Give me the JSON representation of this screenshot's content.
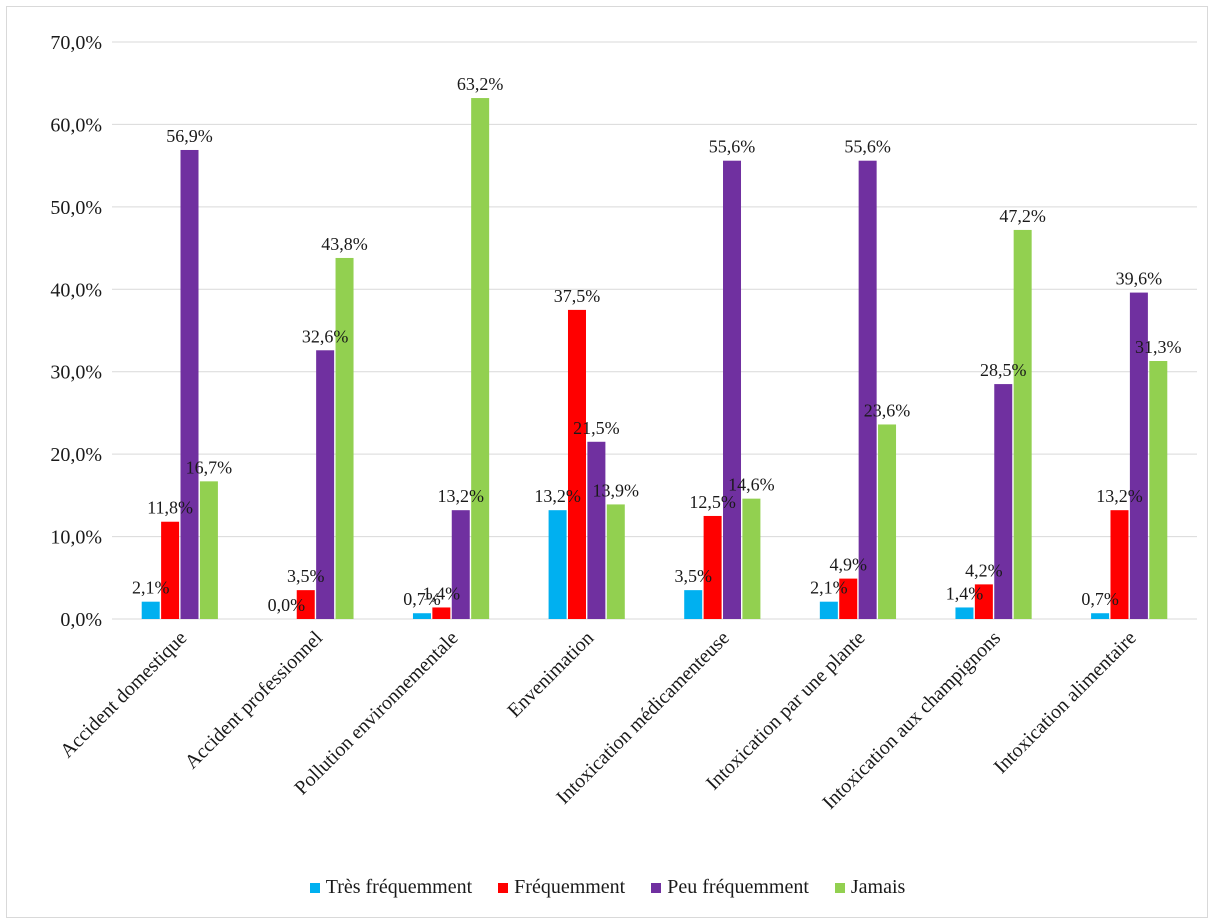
{
  "chart_data": {
    "type": "bar",
    "categories": [
      "Accident domestique",
      "Accident professionnel",
      "Pollution environnementale",
      "Envenimation",
      "Intoxication médicamenteuse",
      "Intoxication par une plante",
      "Intoxication aux champignons",
      "Intoxication alimentaire"
    ],
    "series": [
      {
        "name": "Très fréquemment",
        "color": "#00b0f0",
        "values": [
          2.1,
          0.0,
          0.7,
          13.2,
          3.5,
          2.1,
          1.4,
          0.7
        ],
        "labels": [
          "2,1%",
          "0,0%",
          "0,7%",
          "13,2%",
          "3,5%",
          "2,1%",
          "1,4%",
          "0,7%"
        ]
      },
      {
        "name": "Fréquemment",
        "color": "#ff0000",
        "values": [
          11.8,
          3.5,
          1.4,
          37.5,
          12.5,
          4.9,
          4.2,
          13.2
        ],
        "labels": [
          "11,8%",
          "3,5%",
          "1,4%",
          "37,5%",
          "12,5%",
          "4,9%",
          "4,2%",
          "13,2%"
        ]
      },
      {
        "name": "Peu fréquemment",
        "color": "#7030a0",
        "values": [
          56.9,
          32.6,
          13.2,
          21.5,
          55.6,
          55.6,
          28.5,
          39.6
        ],
        "labels": [
          "56,9%",
          "32,6%",
          "13,2%",
          "21,5%",
          "55,6%",
          "55,6%",
          "28,5%",
          "39,6%"
        ]
      },
      {
        "name": "Jamais",
        "color": "#92d050",
        "values": [
          16.7,
          43.8,
          63.2,
          13.9,
          14.6,
          23.6,
          47.2,
          31.3
        ],
        "labels": [
          "16,7%",
          "43,8%",
          "63,2%",
          "13,9%",
          "14,6%",
          "23,6%",
          "47,2%",
          "31,3%"
        ]
      }
    ],
    "yticks": [
      0,
      10,
      20,
      30,
      40,
      50,
      60,
      70
    ],
    "ytick_labels": [
      "0,0%",
      "10,0%",
      "20,0%",
      "30,0%",
      "40,0%",
      "50,0%",
      "60,0%",
      "70,0%"
    ],
    "ylim": [
      0,
      70
    ],
    "grid": true,
    "legend_position": "bottom",
    "title": "",
    "xlabel": "",
    "ylabel": ""
  }
}
